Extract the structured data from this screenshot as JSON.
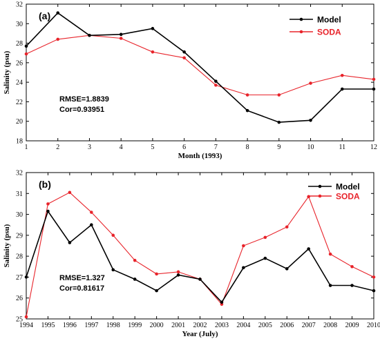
{
  "chart_data": [
    {
      "type": "line",
      "panel_label": "(a)",
      "xlabel": "Month (1993)",
      "ylabel": "Salinity (psu)",
      "x": [
        1,
        2,
        3,
        4,
        5,
        6,
        7,
        8,
        9,
        10,
        11,
        12
      ],
      "x_tick_labels": [
        "1",
        "2",
        "3",
        "4",
        "5",
        "6",
        "7",
        "8",
        "9",
        "10",
        "11",
        "12"
      ],
      "xlim": [
        1,
        12
      ],
      "ylim": [
        18,
        32
      ],
      "y_ticks": [
        18,
        20,
        22,
        24,
        26,
        28,
        30,
        32
      ],
      "grid": false,
      "legend_position": "top-right",
      "annotations": [
        "RMSE=1.8839",
        "Cor=0.93951"
      ],
      "series": [
        {
          "name": "Model",
          "color": "#000000",
          "values": [
            27.7,
            31.1,
            28.8,
            28.9,
            29.5,
            27.1,
            24.1,
            21.1,
            19.9,
            20.1,
            23.3,
            23.3
          ]
        },
        {
          "name": "SODA",
          "color": "#e8232a",
          "values": [
            26.9,
            28.4,
            28.8,
            28.5,
            27.1,
            26.5,
            23.7,
            22.7,
            22.7,
            23.9,
            24.7,
            24.3
          ]
        }
      ]
    },
    {
      "type": "line",
      "panel_label": "(b)",
      "xlabel": "Year (July)",
      "ylabel": "Salinity (psu)",
      "x": [
        1994,
        1995,
        1996,
        1997,
        1998,
        1999,
        2000,
        2001,
        2002,
        2003,
        2004,
        2005,
        2006,
        2007,
        2008,
        2009,
        2010
      ],
      "x_tick_labels": [
        "1994",
        "1995",
        "1996",
        "1997",
        "1998",
        "1999",
        "2000",
        "2001",
        "2002",
        "2003",
        "2004",
        "2005",
        "2006",
        "2007",
        "2008",
        "2009",
        "2010"
      ],
      "xlim": [
        1994,
        2010
      ],
      "ylim": [
        25,
        32
      ],
      "y_ticks": [
        25,
        26,
        27,
        28,
        29,
        30,
        31,
        32
      ],
      "grid": false,
      "legend_position": "top-right",
      "annotations": [
        "RMSE=1.327",
        "Cor=0.81617"
      ],
      "series": [
        {
          "name": "Model",
          "color": "#000000",
          "values": [
            27.0,
            30.15,
            28.65,
            29.5,
            27.35,
            26.9,
            26.35,
            27.1,
            26.9,
            25.8,
            27.45,
            27.9,
            27.4,
            28.35,
            26.6,
            26.6,
            26.35
          ]
        },
        {
          "name": "SODA",
          "color": "#e8232a",
          "values": [
            25.1,
            30.5,
            31.05,
            30.1,
            29.0,
            27.8,
            27.15,
            27.25,
            26.9,
            25.7,
            28.5,
            28.9,
            29.4,
            30.85,
            28.1,
            27.5,
            27.0
          ]
        }
      ]
    }
  ]
}
